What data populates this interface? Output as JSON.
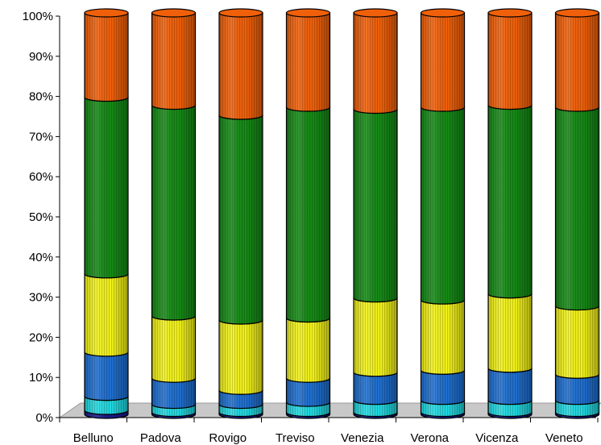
{
  "chart_data": {
    "type": "bar",
    "stacked": "percent",
    "style": "3d-cylinder",
    "categories": [
      "Belluno",
      "Padova",
      "Rovigo",
      "Treviso",
      "Venezia",
      "Verona",
      "Vicenza",
      "Veneto"
    ],
    "series": [
      {
        "color": "#1a1a8c",
        "values": [
          1.0,
          0.5,
          0.5,
          0.5,
          0.5,
          0.5,
          0.5,
          0.5
        ]
      },
      {
        "color": "#22d8e0",
        "values": [
          3.5,
          2.0,
          2.0,
          2.5,
          3.0,
          3.0,
          3.0,
          3.0
        ]
      },
      {
        "color": "#1f6fd0",
        "values": [
          11.0,
          6.5,
          3.5,
          6.0,
          7.0,
          7.5,
          8.0,
          6.5
        ]
      },
      {
        "color": "#f2f21a",
        "values": [
          19.5,
          15.5,
          17.5,
          15.0,
          18.5,
          17.5,
          18.5,
          17.0
        ]
      },
      {
        "color": "#168a16",
        "values": [
          44.0,
          52.5,
          51.0,
          52.5,
          47.0,
          48.0,
          47.0,
          49.5
        ]
      },
      {
        "color": "#f0600a",
        "values": [
          21.0,
          23.0,
          25.5,
          23.5,
          24.0,
          23.5,
          23.0,
          23.5
        ]
      }
    ],
    "yticks": [
      "0%",
      "10%",
      "20%",
      "30%",
      "40%",
      "50%",
      "60%",
      "70%",
      "80%",
      "90%",
      "100%"
    ],
    "ylim": [
      0,
      100
    ],
    "grid": false,
    "legend": "none"
  }
}
